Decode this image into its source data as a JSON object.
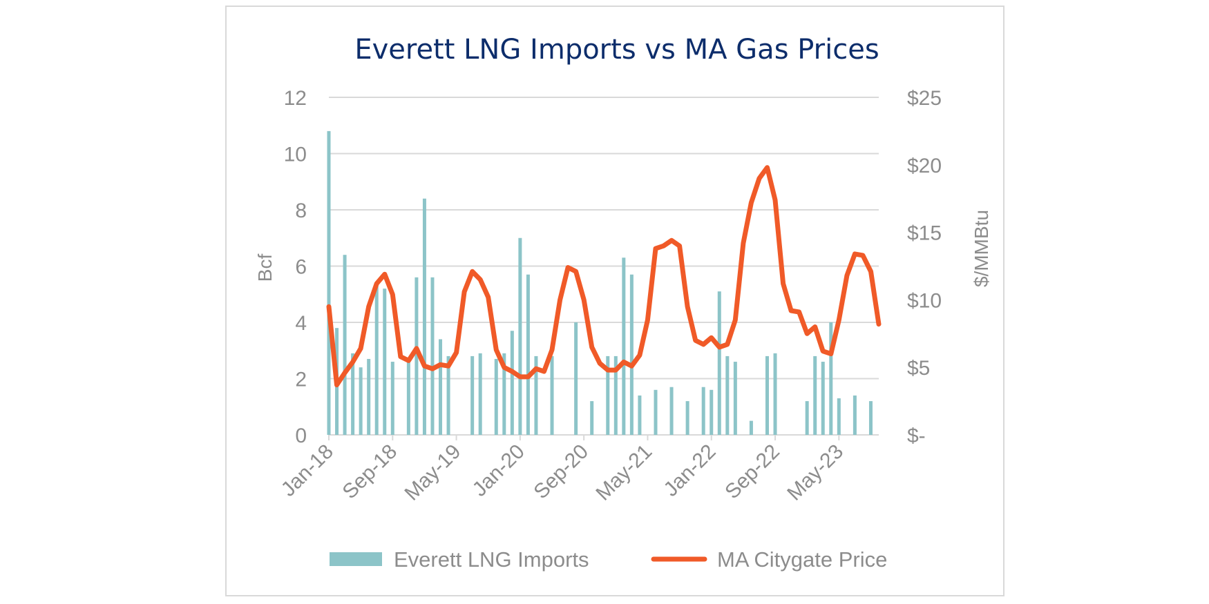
{
  "chart_data": {
    "type": "bar",
    "title": "Everett LNG Imports vs MA Gas Prices",
    "y_left": {
      "label": "Bcf",
      "range": [
        0,
        12
      ],
      "ticks": [
        "0",
        "2",
        "4",
        "6",
        "8",
        "10",
        "12"
      ]
    },
    "y_right": {
      "label": "$/MMBtu",
      "range": [
        0,
        25
      ],
      "ticks": [
        "$-",
        "$5",
        "$10",
        "$15",
        "$20",
        "$25"
      ]
    },
    "x_tick_labels": [
      "Jan-18",
      "Sep-18",
      "May-19",
      "Jan-20",
      "Sep-20",
      "May-21",
      "Jan-22",
      "Sep-22",
      "May-23"
    ],
    "months": [
      "Jan-18",
      "Feb-18",
      "Mar-18",
      "Apr-18",
      "May-18",
      "Jun-18",
      "Jul-18",
      "Aug-18",
      "Sep-18",
      "Oct-18",
      "Nov-18",
      "Dec-18",
      "Jan-19",
      "Feb-19",
      "Mar-19",
      "Apr-19",
      "May-19",
      "Jun-19",
      "Jul-19",
      "Aug-19",
      "Sep-19",
      "Oct-19",
      "Nov-19",
      "Dec-19",
      "Jan-20",
      "Feb-20",
      "Mar-20",
      "Apr-20",
      "May-20",
      "Jun-20",
      "Jul-20",
      "Aug-20",
      "Sep-20",
      "Oct-20",
      "Nov-20",
      "Dec-20",
      "Jan-21",
      "Feb-21",
      "Mar-21",
      "Apr-21",
      "May-21",
      "Jun-21",
      "Jul-21",
      "Aug-21",
      "Sep-21",
      "Oct-21",
      "Nov-21",
      "Dec-21",
      "Jan-22",
      "Feb-22",
      "Mar-22",
      "Apr-22",
      "May-22",
      "Jun-22",
      "Jul-22",
      "Aug-22",
      "Sep-22",
      "Oct-22",
      "Nov-22",
      "Dec-22",
      "Jan-23",
      "Feb-23",
      "Mar-23",
      "Apr-23",
      "May-23",
      "Jun-23",
      "Jul-23",
      "Aug-23",
      "Sep-23",
      "Oct-23"
    ],
    "series": [
      {
        "name": "Everett LNG Imports",
        "axis": "left",
        "kind": "bar",
        "color": "#8cc4c8",
        "values": [
          10.8,
          3.8,
          6.4,
          2.9,
          2.4,
          2.7,
          5.3,
          5.2,
          2.6,
          0,
          2.7,
          5.6,
          8.4,
          5.6,
          3.4,
          2.8,
          0,
          0,
          2.8,
          2.9,
          0,
          2.7,
          2.9,
          3.7,
          7.0,
          5.7,
          2.8,
          0,
          2.8,
          0,
          0,
          4.0,
          0,
          1.2,
          0,
          2.8,
          2.8,
          6.3,
          5.7,
          1.4,
          0,
          1.6,
          0,
          1.7,
          0,
          1.2,
          0,
          1.7,
          1.6,
          5.1,
          2.8,
          2.6,
          0,
          0.5,
          0,
          2.8,
          2.9,
          0,
          0,
          0,
          1.2,
          2.8,
          2.6,
          4.0,
          1.3,
          0,
          1.4,
          0,
          1.2,
          0
        ]
      },
      {
        "name": "MA Citygate Price",
        "axis": "right",
        "kind": "line",
        "color": "#f05a28",
        "values": [
          9.5,
          3.7,
          4.6,
          5.4,
          6.4,
          9.5,
          11.2,
          11.9,
          10.4,
          5.8,
          5.5,
          6.4,
          5.1,
          4.9,
          5.2,
          5.1,
          6.1,
          10.6,
          12.1,
          11.5,
          10.2,
          6.3,
          5.0,
          4.7,
          4.3,
          4.3,
          4.9,
          4.7,
          6.3,
          10.0,
          12.4,
          12.1,
          10.0,
          6.5,
          5.3,
          4.8,
          4.8,
          5.4,
          5.1,
          5.9,
          8.5,
          13.8,
          14.0,
          14.4,
          14.0,
          9.5,
          7.0,
          6.7,
          7.2,
          6.5,
          6.7,
          8.5,
          14.2,
          17.2,
          19.0,
          19.8,
          17.4,
          11.2,
          9.2,
          9.1,
          7.5,
          8.0,
          6.2,
          6.0,
          8.5,
          11.8,
          13.4,
          13.3,
          12.1,
          8.2
        ]
      }
    ],
    "gridlines": true,
    "legend": "bottom"
  }
}
